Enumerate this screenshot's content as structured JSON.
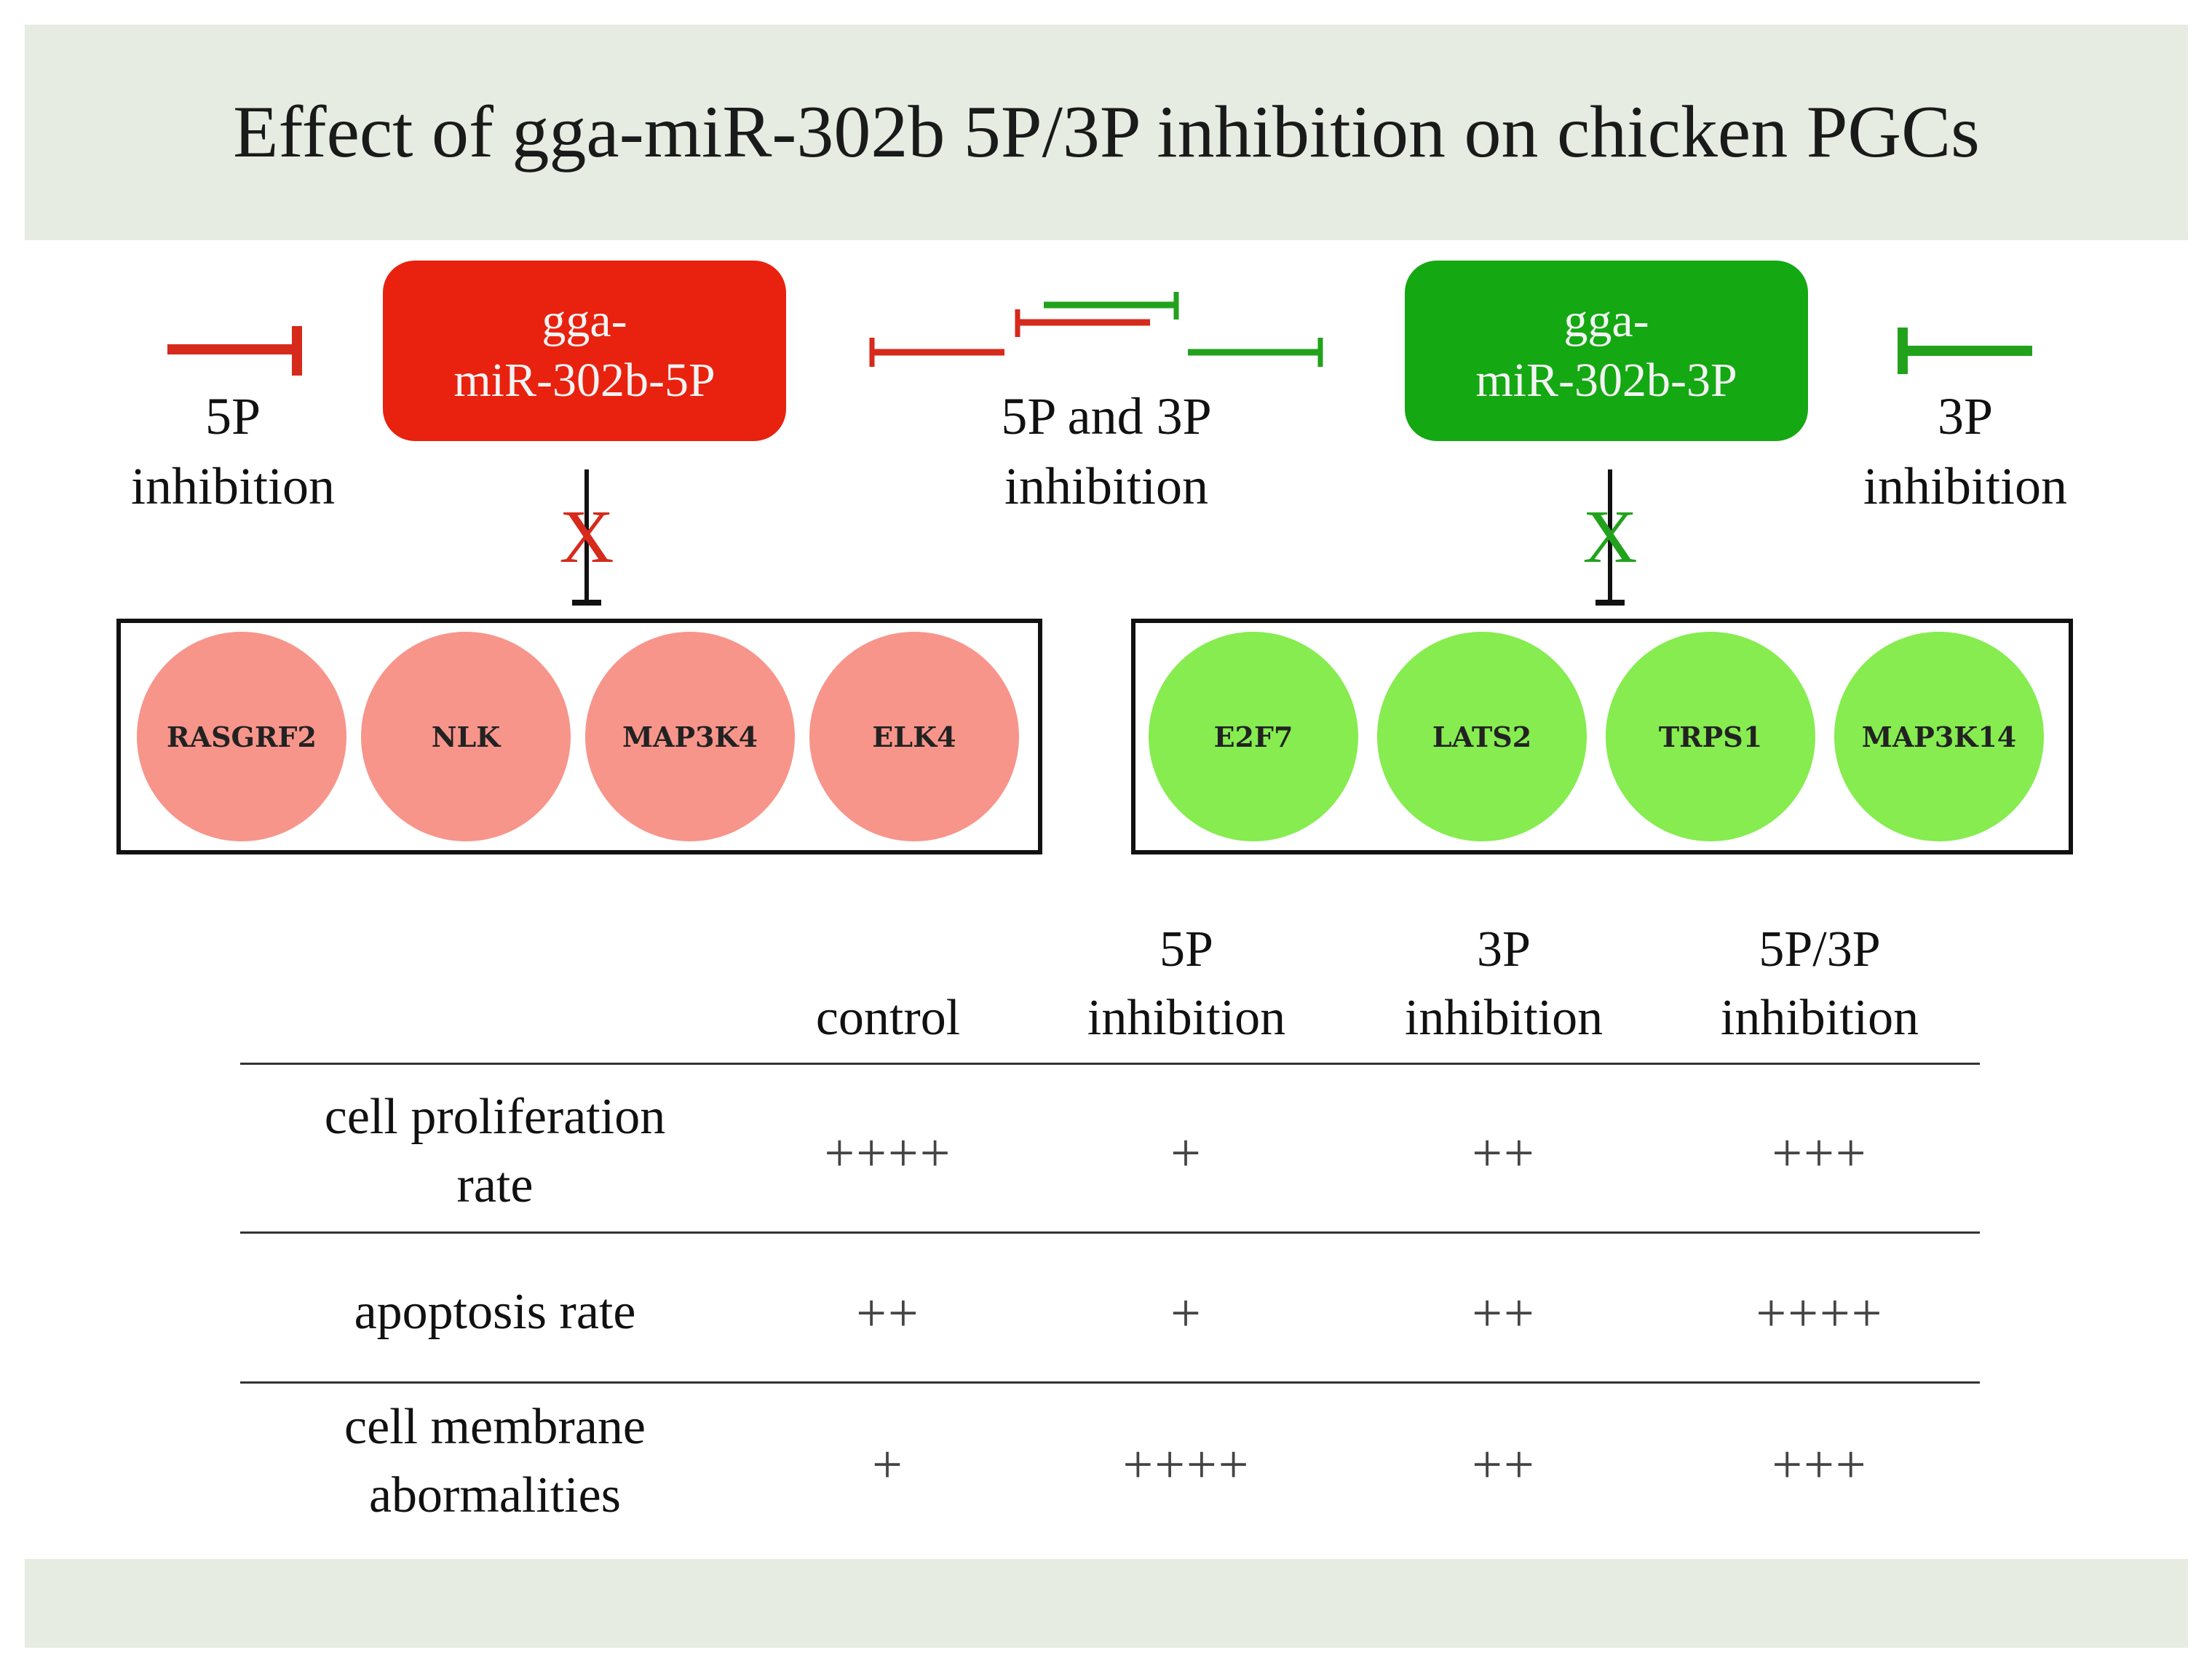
{
  "title": "Effect of gga-miR-302b 5P/3P inhibition on chicken PGCs",
  "mirna_5p": {
    "line1": "gga-",
    "line2": "miR-302b-5P",
    "color": "#e8220f"
  },
  "mirna_3p": {
    "line1": "gga-",
    "line2": "miR-302b-3P",
    "color": "#14a812"
  },
  "labels": {
    "left": {
      "line1": "5P",
      "line2": "inhibition"
    },
    "middle": {
      "line1": "5P and 3P",
      "line2": "inhibition"
    },
    "right": {
      "line1": "3P",
      "line2": "inhibition"
    }
  },
  "cross_mark": "X",
  "targets_5p": [
    "RASGRF2",
    "NLK",
    "MAP3K4",
    "ELK4"
  ],
  "targets_3p": [
    "E2F7",
    "LATS2",
    "TRPS1",
    "MAP3K14"
  ],
  "table": {
    "columns": [
      {
        "line1": "",
        "line2": "control"
      },
      {
        "line1": "5P",
        "line2": "inhibition"
      },
      {
        "line1": "3P",
        "line2": "inhibition"
      },
      {
        "line1": "5P/3P",
        "line2": "inhibition"
      }
    ],
    "rows": [
      {
        "line1": "cell proliferation",
        "line2": "rate",
        "values": [
          "++++",
          "+",
          "++",
          "+++"
        ]
      },
      {
        "line1": "",
        "line2": "apoptosis rate",
        "values": [
          "++",
          "+",
          "++",
          "++++"
        ]
      },
      {
        "line1": "cell membrane",
        "line2": "abormalities",
        "values": [
          "+",
          "++++",
          "++",
          "+++"
        ]
      }
    ]
  }
}
